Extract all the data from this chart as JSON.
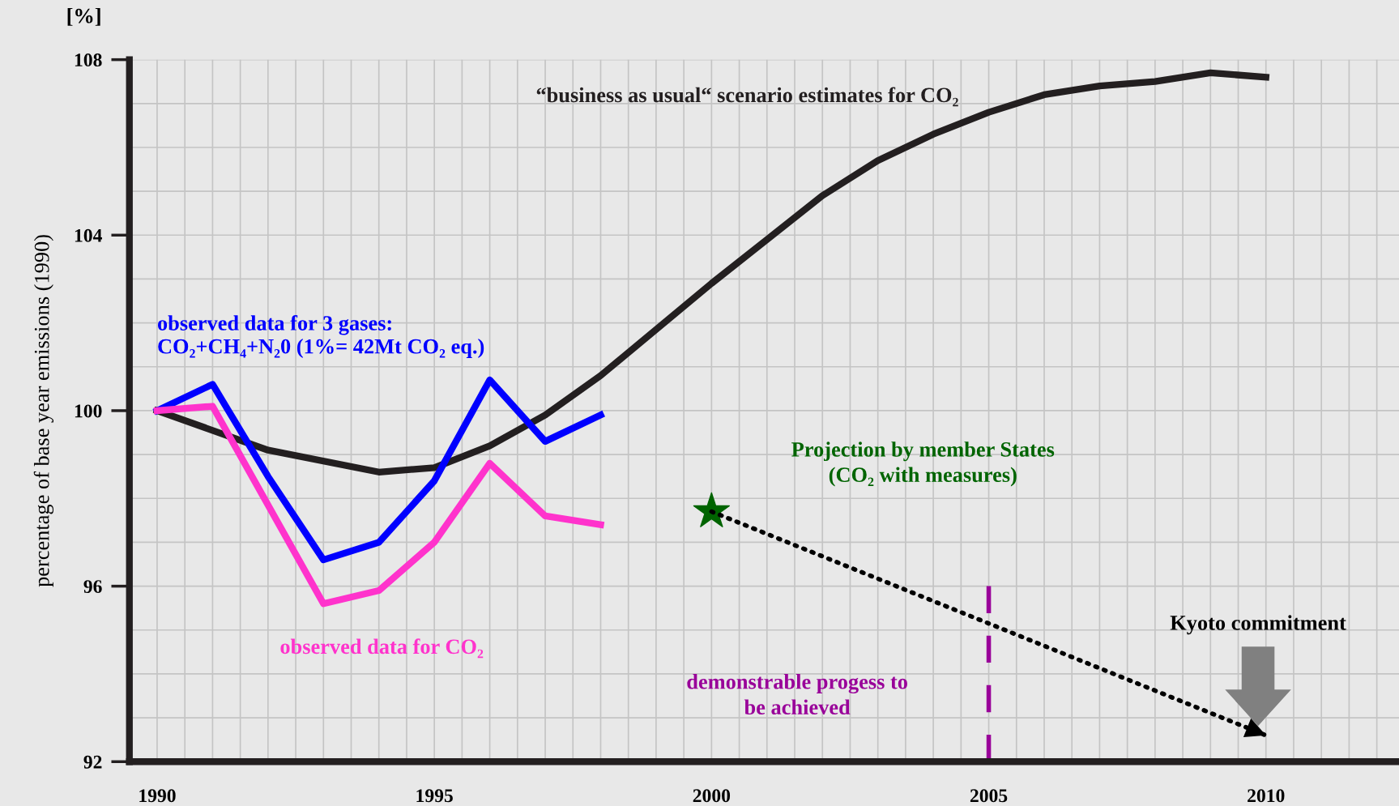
{
  "chart_data": {
    "type": "line",
    "ylabel": "percentage of base year emissions (1990)",
    "xlim": [
      1989.5,
      2012.4
    ],
    "ylim": [
      92,
      108
    ],
    "xticks": [
      1990,
      {
        "value": 1990.5,
        "label": null
      },
      {
        "value": 1991,
        "label": null
      },
      {
        "value": 1991.5,
        "label": null
      },
      {
        "value": 1992,
        "label": null
      },
      {
        "value": 1992.5,
        "label": null
      },
      {
        "value": 1993,
        "label": null
      },
      {
        "value": 1993.5,
        "label": null
      },
      {
        "value": 1994,
        "label": null
      },
      {
        "value": 1994.5,
        "label": null
      },
      1995,
      {
        "value": 1995.5,
        "label": null
      },
      {
        "value": 1996,
        "label": null
      },
      {
        "value": 1996.5,
        "label": null
      },
      {
        "value": 1997,
        "label": null
      },
      {
        "value": 1997.5,
        "label": null
      },
      {
        "value": 1998,
        "label": null
      },
      {
        "value": 1998.5,
        "label": null
      },
      {
        "value": 1999,
        "label": null
      },
      {
        "value": 1999.5,
        "label": null
      },
      2000,
      {
        "value": 2000.5,
        "label": null
      },
      {
        "value": 2001,
        "label": null
      },
      {
        "value": 2001.5,
        "label": null
      },
      {
        "value": 2002,
        "label": null
      },
      {
        "value": 2002.5,
        "label": null
      },
      {
        "value": 2003,
        "label": null
      },
      {
        "value": 2003.5,
        "label": null
      },
      {
        "value": 2004,
        "label": null
      },
      {
        "value": 2004.5,
        "label": null
      },
      2005,
      {
        "value": 2005.5,
        "label": null
      },
      {
        "value": 2006,
        "label": null
      },
      {
        "value": 2006.5,
        "label": null
      },
      {
        "value": 2007,
        "label": null
      },
      {
        "value": 2007.5,
        "label": null
      },
      {
        "value": 2008,
        "label": null
      },
      {
        "value": 2008.5,
        "label": null
      },
      {
        "value": 2009,
        "label": null
      },
      {
        "value": 2009.5,
        "label": null
      },
      2010,
      {
        "value": 2010.5,
        "label": null
      },
      {
        "value": 2011,
        "label": null
      },
      {
        "value": 2011.5,
        "label": null
      },
      {
        "value": 2012,
        "label": null
      }
    ],
    "yticks": [
      92,
      {
        "value": 93,
        "label": null
      },
      {
        "value": 94,
        "label": null
      },
      {
        "value": 95,
        "label": null
      },
      96,
      {
        "value": 97,
        "label": null
      },
      {
        "value": 98,
        "label": null
      },
      {
        "value": 99,
        "label": null
      },
      100,
      {
        "value": 101,
        "label": null
      },
      {
        "value": 102,
        "label": null
      },
      {
        "value": 103,
        "label": null
      },
      104,
      {
        "value": 105,
        "label": null
      },
      {
        "value": 106,
        "label": null
      },
      {
        "value": 107,
        "label": null
      },
      108
    ],
    "grid": true,
    "legend": false,
    "marker": "none",
    "line_style": "solid",
    "series": [
      {
        "name": "“business as usual“ scenario estimates for CO₂",
        "color": "#231f20",
        "x": [
          1990,
          1992,
          1994,
          1995,
          1996,
          1997,
          1998,
          2000,
          2001,
          2002,
          2003,
          2004,
          2005,
          2006,
          2007,
          2008,
          2009,
          2010
        ],
        "values": [
          100.0,
          99.1,
          98.6,
          98.7,
          99.2,
          99.9,
          100.8,
          102.9,
          103.9,
          104.9,
          105.7,
          106.3,
          106.8,
          107.2,
          107.4,
          107.5,
          107.7,
          107.6
        ]
      },
      {
        "name": "observed data for 3 gases:\nCO₂+CH₄+N₂0 (1%= 42Mt CO₂ eq.)",
        "color": "#0000ff",
        "x": [
          1990,
          1991,
          1992,
          1993,
          1994,
          1995,
          1996,
          1997,
          1998
        ],
        "values": [
          100.0,
          100.6,
          98.5,
          96.6,
          97.0,
          98.4,
          100.7,
          99.3,
          99.9
        ]
      },
      {
        "name": "observed data for CO₂",
        "color": "#ff33cc",
        "x": [
          1990,
          1991,
          1993,
          1994,
          1995,
          1996,
          1997,
          1998
        ],
        "values": [
          100.0,
          100.1,
          95.6,
          95.9,
          97.0,
          98.8,
          97.6,
          97.4
        ]
      },
      {
        "type": "scatter",
        "marker": "star",
        "color": "#006400",
        "x": [
          2000
        ],
        "values": [
          97.7
        ]
      },
      {
        "type": "line",
        "line_style": "dotted",
        "color": "#000000",
        "x": [
          2000,
          2010
        ],
        "values": [
          97.7,
          92.6
        ]
      }
    ],
    "ref_lines": [
      {
        "axis": "x",
        "value": 2005,
        "label": "demonstrable progess to\nbe achieved",
        "color": "#990099",
        "line_style": "dashed"
      }
    ],
    "annotations": [
      "[%]",
      "Projection by member States\n(CO₂ with measures)",
      "Kyoto commitment"
    ]
  }
}
